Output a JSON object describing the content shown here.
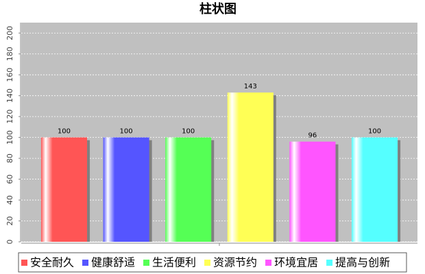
{
  "chart_data": {
    "type": "bar",
    "title": "柱状图",
    "categories": [
      null
    ],
    "series": [
      {
        "name": "安全耐久",
        "color": "#ff5555",
        "values": [
          100
        ]
      },
      {
        "name": "健康舒适",
        "color": "#5555ff",
        "values": [
          100
        ]
      },
      {
        "name": "生活便利",
        "color": "#55ff55",
        "values": [
          100
        ]
      },
      {
        "name": "资源节约",
        "color": "#ffff55",
        "values": [
          143
        ]
      },
      {
        "name": "环境宜居",
        "color": "#ff55ff",
        "values": [
          96
        ]
      },
      {
        "name": "提高与创新",
        "color": "#55ffff",
        "values": [
          100
        ]
      }
    ],
    "ylim": [
      0,
      210
    ],
    "yticks": [
      0,
      20,
      40,
      60,
      80,
      100,
      120,
      140,
      160,
      180,
      200
    ],
    "grid": true,
    "legend": "bottom"
  }
}
